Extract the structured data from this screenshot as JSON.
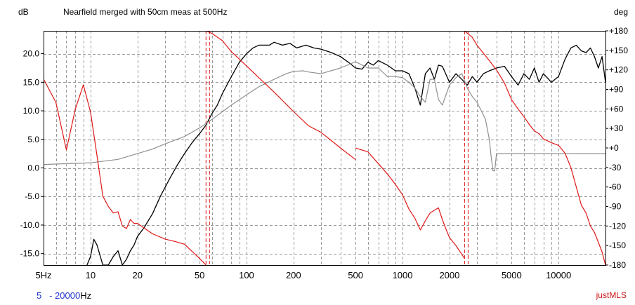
{
  "chart_data": {
    "type": "line",
    "title": "Nearfield merged with 50cm meas at 500Hz",
    "ylabel_left": "dB",
    "ylabel_right": "deg",
    "x_scale": "log",
    "xlim": [
      5,
      20000
    ],
    "ylim": [
      -17,
      24
    ],
    "y2lim": [
      -180,
      180
    ],
    "grid": true,
    "x_ticks": [
      {
        "value": 5,
        "label": "5Hz"
      },
      {
        "value": 10,
        "label": "10"
      },
      {
        "value": 20,
        "label": "20"
      },
      {
        "value": 50,
        "label": "50"
      },
      {
        "value": 100,
        "label": "100"
      },
      {
        "value": 200,
        "label": "200"
      },
      {
        "value": 500,
        "label": "500"
      },
      {
        "value": 1000,
        "label": "1000"
      },
      {
        "value": 2000,
        "label": "2000"
      },
      {
        "value": 5000,
        "label": "5000"
      },
      {
        "value": 10000,
        "label": "10000"
      }
    ],
    "y_ticks": [
      {
        "value": 20,
        "label": "20.0"
      },
      {
        "value": 15,
        "label": "15.0"
      },
      {
        "value": 10,
        "label": "10.0"
      },
      {
        "value": 5,
        "label": "5.0"
      },
      {
        "value": 0,
        "label": "0.0"
      },
      {
        "value": -5,
        "label": "-5.0"
      },
      {
        "value": -10,
        "label": "-10.0"
      },
      {
        "value": -15,
        "label": "-15.0"
      }
    ],
    "y2_ticks": [
      {
        "value": 180,
        "label": "+180"
      },
      {
        "value": 150,
        "label": "+150"
      },
      {
        "value": 120,
        "label": "+120"
      },
      {
        "value": 90,
        "label": "+90"
      },
      {
        "value": 60,
        "label": "+60"
      },
      {
        "value": 30,
        "label": "+30"
      },
      {
        "value": 0,
        "label": "+0"
      },
      {
        "value": -30,
        "label": "-30"
      },
      {
        "value": -60,
        "label": "-60"
      },
      {
        "value": -90,
        "label": "-90"
      },
      {
        "value": -120,
        "label": "-120"
      },
      {
        "value": -150,
        "label": "-150"
      },
      {
        "value": -180,
        "label": "-180"
      }
    ],
    "vertical_markers": [
      {
        "value": 55,
        "style": "dashed",
        "color": "#e01818"
      },
      {
        "value": 2500,
        "style": "dashed",
        "color": "#e01818"
      }
    ],
    "series": [
      {
        "color": "#000000",
        "axis": "left",
        "x": [
          9.5,
          10,
          10.5,
          11,
          12,
          13,
          14,
          15,
          16,
          17,
          18,
          19,
          20,
          22,
          25,
          28,
          32,
          36,
          40,
          45,
          50,
          55,
          60,
          65,
          70,
          80,
          90,
          100,
          110,
          120,
          130,
          140,
          150,
          170,
          190,
          210,
          240,
          270,
          300,
          350,
          400,
          450,
          500,
          550,
          600,
          650,
          700,
          800,
          900,
          1000,
          1100,
          1200,
          1300,
          1400,
          1500,
          1600,
          1700,
          1800,
          2000,
          2200,
          2400,
          2600,
          2800,
          3000,
          3300,
          3600,
          4000,
          4500,
          5000,
          5500,
          6000,
          6500,
          7000,
          7500,
          8000,
          9000,
          10000,
          11000,
          12000,
          13000,
          14000,
          15000,
          16000,
          17000,
          18000,
          19000,
          20000
        ],
        "y": [
          -17,
          -15.5,
          -12.5,
          -13.5,
          -17,
          -17,
          -15.5,
          -14.5,
          -17,
          -16,
          -14.5,
          -13.5,
          -12,
          -10.5,
          -8,
          -5,
          -2,
          0.5,
          2.5,
          4.5,
          6,
          7.5,
          9.5,
          11,
          13,
          16,
          18.5,
          20,
          21,
          21.5,
          21.5,
          21.5,
          22,
          21.5,
          21.8,
          21,
          21.5,
          21,
          20.8,
          20.2,
          19.5,
          18.5,
          17.5,
          17.3,
          18.5,
          18,
          18.8,
          18,
          17,
          17,
          16.5,
          14,
          11,
          16.5,
          17.5,
          15.5,
          18,
          17.8,
          15,
          16.5,
          15.5,
          14.5,
          16,
          15,
          16.5,
          17,
          17.5,
          17.8,
          16,
          14.5,
          16.5,
          15.5,
          17.5,
          15,
          16.5,
          15,
          16,
          19,
          21,
          21.5,
          20.5,
          20.2,
          21,
          19.5,
          17.5,
          19.5,
          15
        ]
      },
      {
        "color": "#909090",
        "axis": "left",
        "x": [
          5,
          10,
          15,
          20,
          25,
          30,
          40,
          50,
          60,
          80,
          100,
          120,
          150,
          180,
          200,
          230,
          250,
          300,
          400,
          500,
          600,
          700,
          800,
          900,
          1000,
          1100,
          1200,
          1300,
          1400,
          1500,
          1600,
          1700,
          1800,
          2000,
          2200,
          2400,
          2600,
          2800,
          3000,
          3200,
          3400,
          3600,
          3700,
          3800,
          3900,
          4000,
          20000
        ],
        "y": [
          0.6,
          0.9,
          1.5,
          2.5,
          3.3,
          4.2,
          5.5,
          7,
          8.5,
          11,
          12.8,
          14.2,
          15.5,
          16.5,
          16.9,
          17,
          16.8,
          16.5,
          17.5,
          18.6,
          17.5,
          17.5,
          16,
          16,
          15.8,
          15,
          14,
          12.5,
          11.5,
          15.5,
          15.5,
          12,
          11,
          14.5,
          15.8,
          16.5,
          14,
          12.5,
          11.5,
          10,
          8.5,
          5,
          2,
          -0.5,
          -0.5,
          2.5,
          2.5
        ]
      },
      {
        "color": "#e01818",
        "axis": "right",
        "x": [
          5,
          6,
          7,
          8,
          9,
          10,
          11,
          12,
          13,
          14,
          15,
          16,
          17,
          18,
          19,
          20,
          25,
          30,
          35,
          40,
          50,
          55
        ],
        "y": [
          106,
          70,
          -3,
          60,
          97,
          55,
          -12,
          -74,
          -90,
          -100,
          -98,
          -120,
          -124,
          -110,
          -116,
          -116,
          -132,
          -140,
          -144,
          -148,
          -170,
          -180
        ]
      },
      {
        "color": "#e01818",
        "axis": "right",
        "x": [
          55,
          60,
          70,
          80,
          100,
          120,
          150,
          200,
          250,
          300,
          400,
          500
        ],
        "y": [
          180,
          176,
          165,
          148,
          126,
          108,
          86,
          56,
          34,
          24,
          0,
          -18
        ]
      },
      {
        "color": "#e01818",
        "axis": "right",
        "x": [
          500,
          600,
          700,
          800,
          900,
          1000,
          1100,
          1200,
          1300,
          1400,
          1500,
          1700,
          1800,
          1900,
          2000,
          2200,
          2500
        ],
        "y": [
          0,
          -6,
          -24,
          -40,
          -56,
          -72,
          -94,
          -108,
          -126,
          -112,
          -100,
          -92,
          -110,
          -125,
          -138,
          -150,
          -170
        ]
      },
      {
        "color": "#e01818",
        "axis": "right",
        "x": [
          2500,
          2800,
          3000,
          3500,
          4000,
          4500,
          5000,
          5500,
          6000,
          6500,
          7000,
          7500,
          8000,
          9000,
          10000,
          11000,
          12000,
          13000,
          14000,
          15000,
          16000,
          17000,
          18000,
          19000,
          20000
        ],
        "y": [
          180,
          170,
          158,
          138,
          120,
          100,
          74,
          60,
          48,
          36,
          26,
          22,
          14,
          8,
          4,
          -8,
          -30,
          -60,
          -88,
          -100,
          -120,
          -130,
          -145,
          -160,
          -180
        ]
      }
    ]
  },
  "header": {
    "left_unit": "dB",
    "title": "Nearfield merged with 50cm meas at 500Hz",
    "right_unit": "deg"
  },
  "footer": {
    "range_start": "5",
    "range_sep": "- ",
    "range_end": "20000",
    "range_unit": "Hz",
    "brand": "justMLS"
  }
}
